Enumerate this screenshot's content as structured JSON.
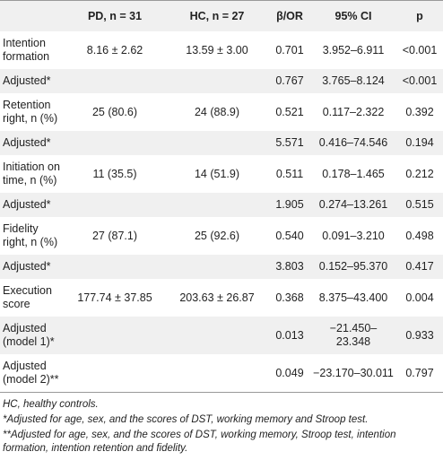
{
  "table": {
    "header": [
      "",
      "PD, n = 31",
      "HC, n = 27",
      "β/OR",
      "95% CI",
      "p"
    ],
    "rows": [
      [
        "Intention formation",
        "8.16 ± 2.62",
        "13.59 ± 3.00",
        "0.701",
        "3.952–6.911",
        "<0.001"
      ],
      [
        "Adjusted*",
        null,
        null,
        "0.767",
        "3.765–8.124",
        "<0.001"
      ],
      [
        "Retention right, n (%)",
        "25 (80.6)",
        "24 (88.9)",
        "0.521",
        "0.117–2.322",
        "0.392"
      ],
      [
        "Adjusted*",
        null,
        null,
        "5.571",
        "0.416–74.546",
        "0.194"
      ],
      [
        "Initiation on time, n (%)",
        "11 (35.5)",
        "14 (51.9)",
        "0.511",
        "0.178–1.465",
        "0.212"
      ],
      [
        "Adjusted*",
        null,
        null,
        "1.905",
        "0.274–13.261",
        "0.515"
      ],
      [
        "Fidelity right, n (%)",
        "27 (87.1)",
        "25 (92.6)",
        "0.540",
        "0.091–3.210",
        "0.498"
      ],
      [
        "Adjusted*",
        null,
        null,
        "3.803",
        "0.152–95.370",
        "0.417"
      ],
      [
        "Execution score",
        "177.74 ± 37.85",
        "203.63 ± 26.87",
        "0.368",
        "8.375–43.400",
        "0.004"
      ],
      [
        "Adjusted (model 1)*",
        null,
        null,
        "0.013",
        "−21.450–23.348",
        "0.933"
      ],
      [
        "Adjusted (model 2)**",
        null,
        null,
        "0.049",
        "−23.170–30.011",
        "0.797"
      ]
    ]
  },
  "footnotes": [
    "HC, healthy controls.",
    "*Adjusted for age, sex, and the scores of DST, working memory and Stroop test.",
    "**Adjusted for age, sex, and the scores of DST, working memory, Stroop test, intention formation, intention retention and fidelity."
  ]
}
